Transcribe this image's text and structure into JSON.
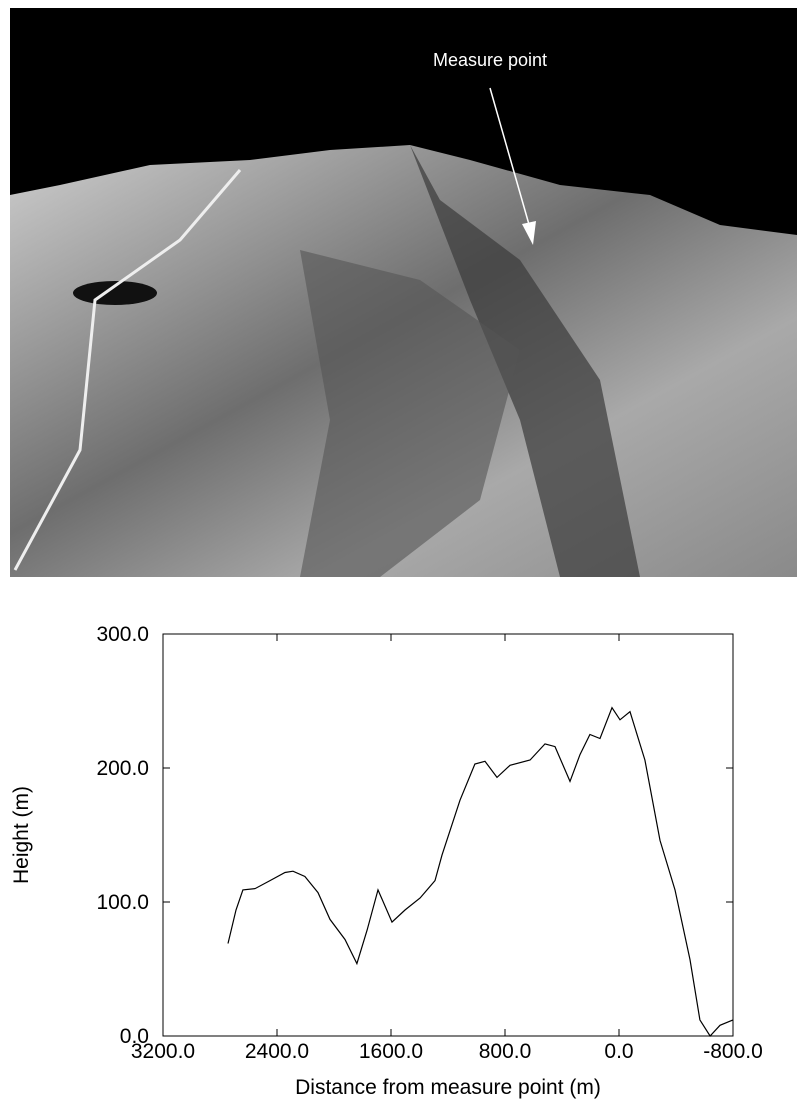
{
  "chart_data": {
    "type": "line",
    "annotation": "Measure point",
    "x_label": "Distance from measure point (m)",
    "y_label": "Height (m)",
    "xlim": [
      3200,
      -800
    ],
    "ylim": [
      0,
      300
    ],
    "xticks": [
      {
        "value": 3200,
        "label": "3200.0"
      },
      {
        "value": 2400,
        "label": "2400.0"
      },
      {
        "value": 1600,
        "label": "1600.0"
      },
      {
        "value": 800,
        "label": "800.0"
      },
      {
        "value": 0,
        "label": "0.0"
      },
      {
        "value": -800,
        "label": "-800.0"
      }
    ],
    "yticks": [
      {
        "value": 0,
        "label": "0.0"
      },
      {
        "value": 100,
        "label": "100.0"
      },
      {
        "value": 200,
        "label": "200.0"
      },
      {
        "value": 300,
        "label": "300.0"
      }
    ],
    "color": "#000000",
    "x": [
      2744,
      2688,
      2639,
      2554,
      2449,
      2344,
      2288,
      2204,
      2112,
      2028,
      1923,
      1839,
      1768,
      1691,
      1593,
      1502,
      1396,
      1291,
      1242,
      1116,
      1011,
      940,
      856,
      765,
      624,
      519,
      449,
      344,
      274,
      204,
      133,
      49,
      -7,
      -77,
      -182,
      -288,
      -393,
      -498,
      -568,
      -639,
      -709,
      -800
    ],
    "values": [
      69,
      94,
      109,
      110,
      116,
      122,
      123,
      119,
      107,
      87,
      72,
      54,
      79,
      109,
      85,
      94,
      103,
      116,
      135,
      176,
      203,
      205,
      193,
      202,
      206,
      218,
      216,
      190,
      210,
      225,
      222,
      245,
      236,
      242,
      206,
      146,
      109,
      57,
      12,
      0,
      8,
      12
    ]
  }
}
